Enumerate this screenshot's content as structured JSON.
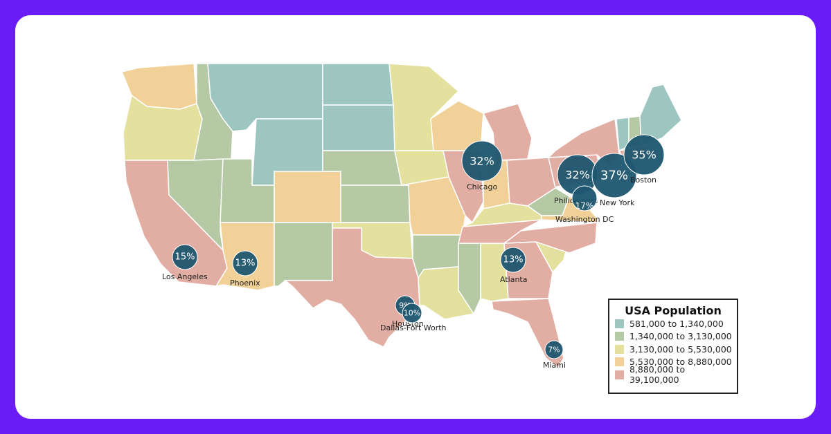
{
  "legend": {
    "title": "USA Population",
    "items": [
      {
        "label": "581,000 to 1,340,000",
        "color": "#9ec6c1"
      },
      {
        "label": "1,340,000 to 3,130,000",
        "color": "#b5c9a4"
      },
      {
        "label": "3,130,000 to 5,530,000",
        "color": "#e4e19e"
      },
      {
        "label": "5,530,000 to 8,880,000",
        "color": "#f2d199"
      },
      {
        "label": "8,880,000 to 39,100,000",
        "color": "#e2aea3"
      }
    ]
  },
  "cities": [
    {
      "name": "Chicago",
      "value": "32%"
    },
    {
      "name": "Philidelphia",
      "value": "32%"
    },
    {
      "name": "New York",
      "value": "37%"
    },
    {
      "name": "Boston",
      "value": "35%"
    },
    {
      "name": "Washington DC",
      "value": "17%"
    },
    {
      "name": "Los Angeles",
      "value": "15%"
    },
    {
      "name": "Phoenix",
      "value": "13%"
    },
    {
      "name": "Atlanta",
      "value": "13%"
    },
    {
      "name": "Houston",
      "value": "9%"
    },
    {
      "name": "Dallas-Fort Worth",
      "value": "10%"
    },
    {
      "name": "Miami",
      "value": "7%"
    }
  ]
}
